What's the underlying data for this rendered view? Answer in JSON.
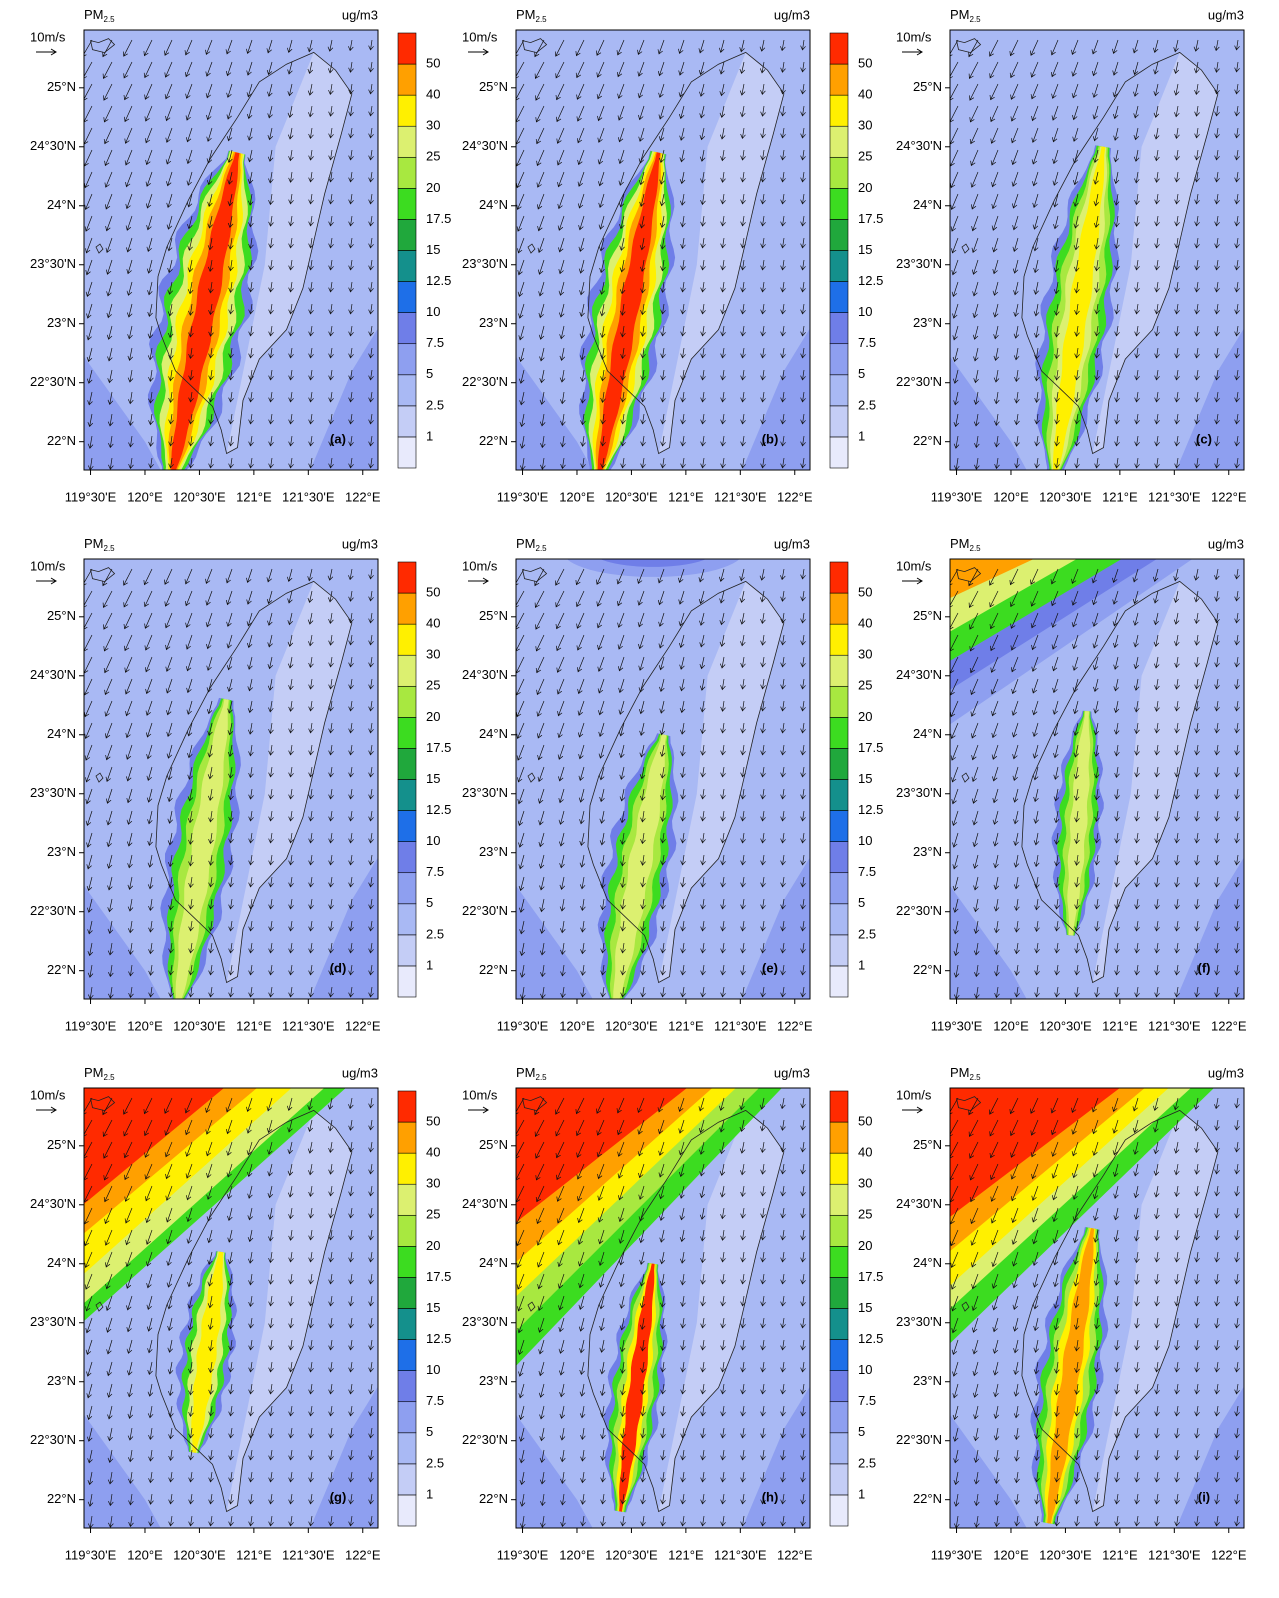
{
  "map": {
    "variable_label": "PM",
    "variable_subscript": "2.5",
    "unit": "ug/m3",
    "wind_reference": "10m/s",
    "xlim": [
      119.44,
      122.14
    ],
    "ylim": [
      21.76,
      25.49
    ],
    "lat_ticks": [
      {
        "value": 22,
        "label": "22°N"
      },
      {
        "value": 22.5,
        "label": "22°30'N"
      },
      {
        "value": 23,
        "label": "23°N"
      },
      {
        "value": 23.5,
        "label": "23°30'N"
      },
      {
        "value": 24,
        "label": "24°N"
      },
      {
        "value": 24.5,
        "label": "24°30'N"
      },
      {
        "value": 25,
        "label": "25°N"
      }
    ],
    "lon_ticks": [
      {
        "value": 119.5,
        "label": "119°30'E"
      },
      {
        "value": 120,
        "label": "120°E"
      },
      {
        "value": 120.5,
        "label": "120°30'E"
      },
      {
        "value": 121,
        "label": "121°E"
      },
      {
        "value": 121.5,
        "label": "121°30'E"
      },
      {
        "value": 122,
        "label": "122°E"
      }
    ],
    "colorbar": {
      "levels": [
        1,
        2.5,
        5,
        7.5,
        10,
        12.5,
        15,
        17.5,
        20,
        25,
        30,
        40,
        50
      ],
      "colors": [
        "#e8eafc",
        "#c4cdf6",
        "#a9b9f4",
        "#8e9ff0",
        "#6f7ee8",
        "#1e6fe8",
        "#14908c",
        "#20a83c",
        "#3cdc20",
        "#a8e840",
        "#dcf070",
        "#fff000",
        "#ffa000",
        "#ff2a00"
      ]
    }
  },
  "panels": [
    {
      "label": "(a)",
      "colorbar": true
    },
    {
      "label": "(b)",
      "colorbar": true
    },
    {
      "label": "(c)",
      "colorbar": false
    },
    {
      "label": "(d)",
      "colorbar": true
    },
    {
      "label": "(e)",
      "colorbar": true
    },
    {
      "label": "(f)",
      "colorbar": false
    },
    {
      "label": "(g)",
      "colorbar": true
    },
    {
      "label": "(h)",
      "colorbar": true
    },
    {
      "label": "(i)",
      "colorbar": false
    }
  ]
}
